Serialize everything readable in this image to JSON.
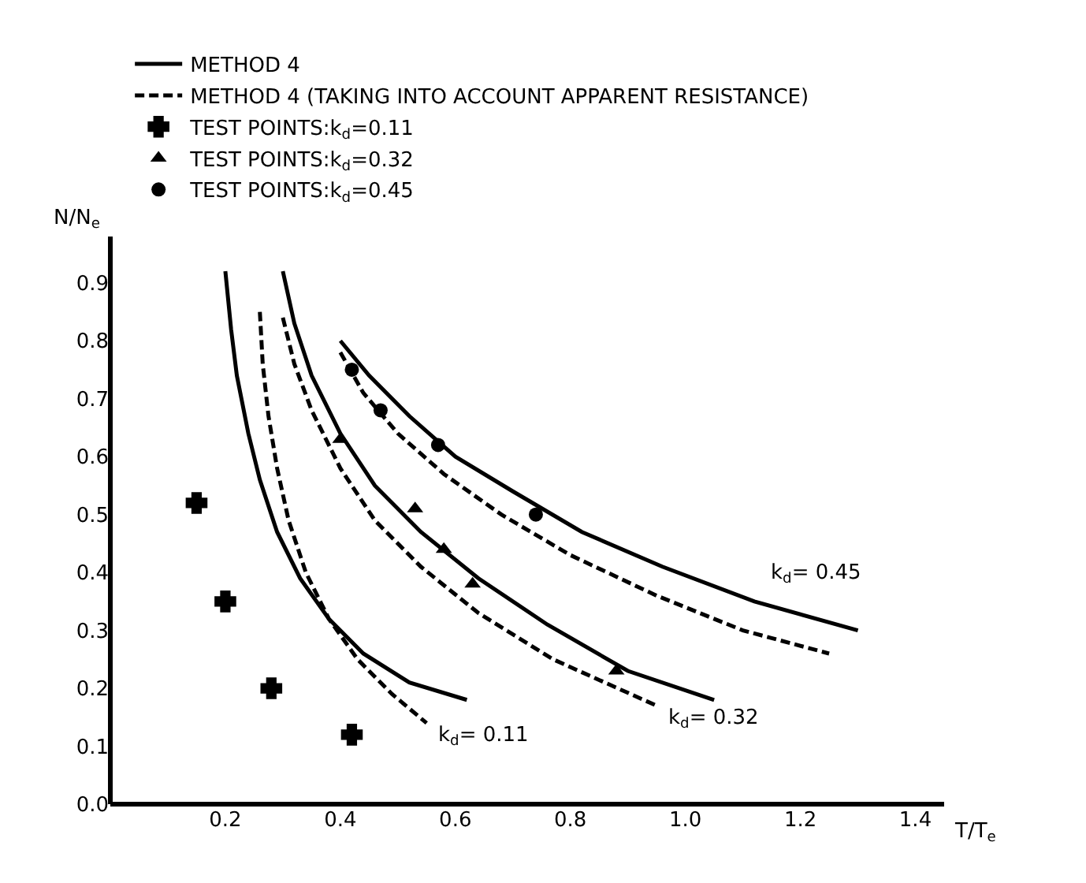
{
  "chart_data": {
    "type": "line",
    "xlabel": "T/T$_{e}$",
    "ylabel": "N/N$_{e}$",
    "xlim": [
      0,
      1.45
    ],
    "ylim": [
      0,
      0.98
    ],
    "xticks": [
      0.2,
      0.4,
      0.6,
      0.8,
      {
        "value": 1,
        "label": "1.0"
      },
      1.2,
      1.4
    ],
    "yticks": [
      {
        "value": 0,
        "label": "0.0"
      },
      0.1,
      0.2,
      0.3,
      0.4,
      0.5,
      0.6,
      0.7,
      0.8,
      0.9
    ],
    "grid": false,
    "legend": "top",
    "series": [
      {
        "name": "METHOD 4",
        "line_style": "solid",
        "marker": "none",
        "color": "#000000",
        "x": [
          0.2,
          0.21,
          0.22,
          0.24,
          0.26,
          0.29,
          0.33,
          0.38,
          0.44,
          0.52,
          0.62
        ],
        "values": [
          0.92,
          0.82,
          0.74,
          0.64,
          0.56,
          0.47,
          0.39,
          0.32,
          0.26,
          0.21,
          0.18
        ]
      },
      {
        "name": "METHOD 4 (TAKING INTO ACCOUNT APPARENT RESISTANCE)",
        "line_style": "dashed",
        "marker": "none",
        "color": "#000000",
        "x": [
          0.26,
          0.265,
          0.275,
          0.29,
          0.31,
          0.34,
          0.38,
          0.43,
          0.49,
          0.55
        ],
        "values": [
          0.85,
          0.76,
          0.67,
          0.58,
          0.49,
          0.4,
          0.32,
          0.25,
          0.19,
          0.14
        ]
      },
      {
        "line_style": "solid",
        "marker": "none",
        "color": "#000000",
        "x": [
          0.3,
          0.32,
          0.35,
          0.4,
          0.46,
          0.54,
          0.64,
          0.76,
          0.9,
          1.05
        ],
        "values": [
          0.92,
          0.83,
          0.74,
          0.64,
          0.55,
          0.47,
          0.39,
          0.31,
          0.23,
          0.18
        ]
      },
      {
        "line_style": "dashed",
        "marker": "none",
        "color": "#000000",
        "x": [
          0.3,
          0.32,
          0.35,
          0.4,
          0.46,
          0.54,
          0.64,
          0.77,
          0.95
        ],
        "values": [
          0.84,
          0.76,
          0.68,
          0.58,
          0.49,
          0.41,
          0.33,
          0.25,
          0.17
        ]
      },
      {
        "line_style": "dashed",
        "marker": "none",
        "color": "#000000",
        "x": [
          0.4,
          0.44,
          0.5,
          0.58,
          0.68,
          0.8,
          0.95,
          1.1,
          1.25
        ],
        "values": [
          0.78,
          0.71,
          0.64,
          0.57,
          0.5,
          0.43,
          0.36,
          0.3,
          0.26
        ]
      },
      {
        "line_style": "solid",
        "marker": "none",
        "color": "#000000",
        "x": [
          0.4,
          0.45,
          0.52,
          0.6,
          0.7,
          0.82,
          0.96,
          1.12,
          1.3
        ],
        "values": [
          0.8,
          0.74,
          0.67,
          0.6,
          0.54,
          0.47,
          0.41,
          0.35,
          0.3
        ]
      },
      {
        "name": "TEST POINTS:k$_{d}$=0.11",
        "type": "scatter",
        "marker": "cross",
        "color": "#000000",
        "x": [
          0.15,
          0.2,
          0.28,
          0.42
        ],
        "values": [
          0.52,
          0.35,
          0.2,
          0.12
        ]
      },
      {
        "name": "TEST POINTS:k$_{d}$=0.32",
        "type": "scatter",
        "marker": "triangle",
        "color": "#000000",
        "x": [
          0.4,
          0.53,
          0.58,
          0.63,
          0.88
        ],
        "values": [
          0.63,
          0.51,
          0.44,
          0.38,
          0.23
        ]
      },
      {
        "name": "TEST POINTS:k$_{d}$=0.45",
        "type": "scatter",
        "marker": "circle",
        "color": "#000000",
        "x": [
          0.42,
          0.47,
          0.57,
          0.74
        ],
        "values": [
          0.75,
          0.68,
          0.62,
          0.5
        ]
      }
    ],
    "annotations": [
      {
        "text": "k$_{d}$= 0.45",
        "x": 1.12,
        "y": 0.35
      },
      {
        "text": "k$_{d}$= 0.32",
        "x": 0.95,
        "y": 0.17
      },
      {
        "text": "k$_{d}$= 0.11",
        "x": 0.55,
        "y": 0.14
      }
    ]
  }
}
